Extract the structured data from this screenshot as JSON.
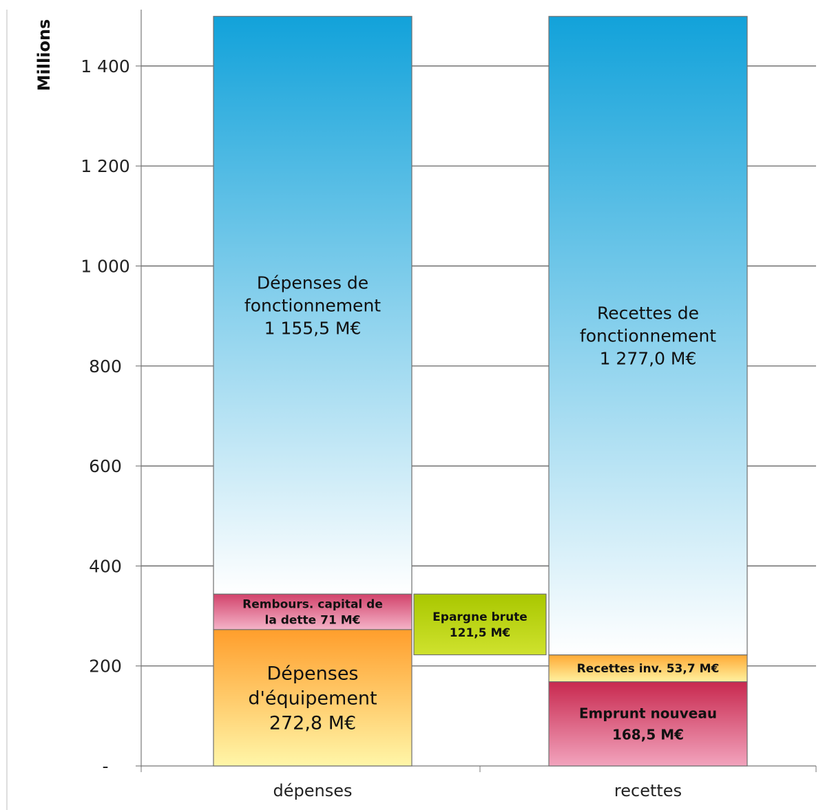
{
  "chart_data": {
    "type": "bar",
    "stacked": true,
    "ylabel": "Millions",
    "xlabel": "",
    "ylim": [
      0,
      1500
    ],
    "yticks": [
      {
        "value": 0,
        "label": "-"
      },
      {
        "value": 200,
        "label": "200"
      },
      {
        "value": 400,
        "label": "400"
      },
      {
        "value": 600,
        "label": "600"
      },
      {
        "value": 800,
        "label": "800"
      },
      {
        "value": 1000,
        "label": "1 000"
      },
      {
        "value": 1200,
        "label": "1 200"
      },
      {
        "value": 1400,
        "label": "1 400"
      }
    ],
    "categories": [
      "dépenses",
      "recettes"
    ],
    "grid": true,
    "segments": [
      {
        "key": "dep-equipement",
        "column": "dépenses",
        "base": 0,
        "value": 272.8,
        "label": [
          "Dépenses",
          "d'équipement",
          "272,8 M€"
        ],
        "label_size": "large",
        "colors": [
          "#ff9e2c",
          "#fff6a8"
        ]
      },
      {
        "key": "remb-capital",
        "column": "dépenses",
        "base": 272.8,
        "value": 71,
        "label": [
          "Rembours. capital de",
          "la dette 71 M€"
        ],
        "label_size": "small",
        "colors": [
          "#d2436b",
          "#f4b3c8"
        ]
      },
      {
        "key": "dep-fonctionnement",
        "column": "dépenses",
        "base": 343.8,
        "value": 1155.5,
        "label": [
          "Dépenses de",
          "fonctionnement",
          "1 155,5 M€"
        ],
        "label_size": "medium",
        "colors": [
          "#12a2da",
          "#ffffff"
        ]
      },
      {
        "key": "epargne-brute",
        "column": "between",
        "base": 222.3,
        "value": 121.5,
        "label": [
          "Epargne brute",
          "121,5 M€"
        ],
        "label_size": "small",
        "colors": [
          "#a9c700",
          "#cfe22e"
        ]
      },
      {
        "key": "emprunt-nouveau",
        "column": "recettes",
        "base": 0,
        "value": 168.5,
        "label": [
          "Emprunt nouveau",
          "168,5 M€"
        ],
        "label_size": "small-medium",
        "colors": [
          "#c8294f",
          "#f2a3bd"
        ]
      },
      {
        "key": "recettes-inv",
        "column": "recettes",
        "base": 168.5,
        "value": 53.7,
        "label": [
          "Recettes inv. 53,7 M€"
        ],
        "label_size": "small",
        "colors": [
          "#ffa935",
          "#fff2a0"
        ]
      },
      {
        "key": "recettes-fonctionnement",
        "column": "recettes",
        "base": 222.2,
        "value": 1277.0,
        "label": [
          "Recettes de",
          "fonctionnement",
          "1 277,0 M€"
        ],
        "label_size": "medium",
        "colors": [
          "#12a2da",
          "#ffffff"
        ]
      }
    ]
  }
}
